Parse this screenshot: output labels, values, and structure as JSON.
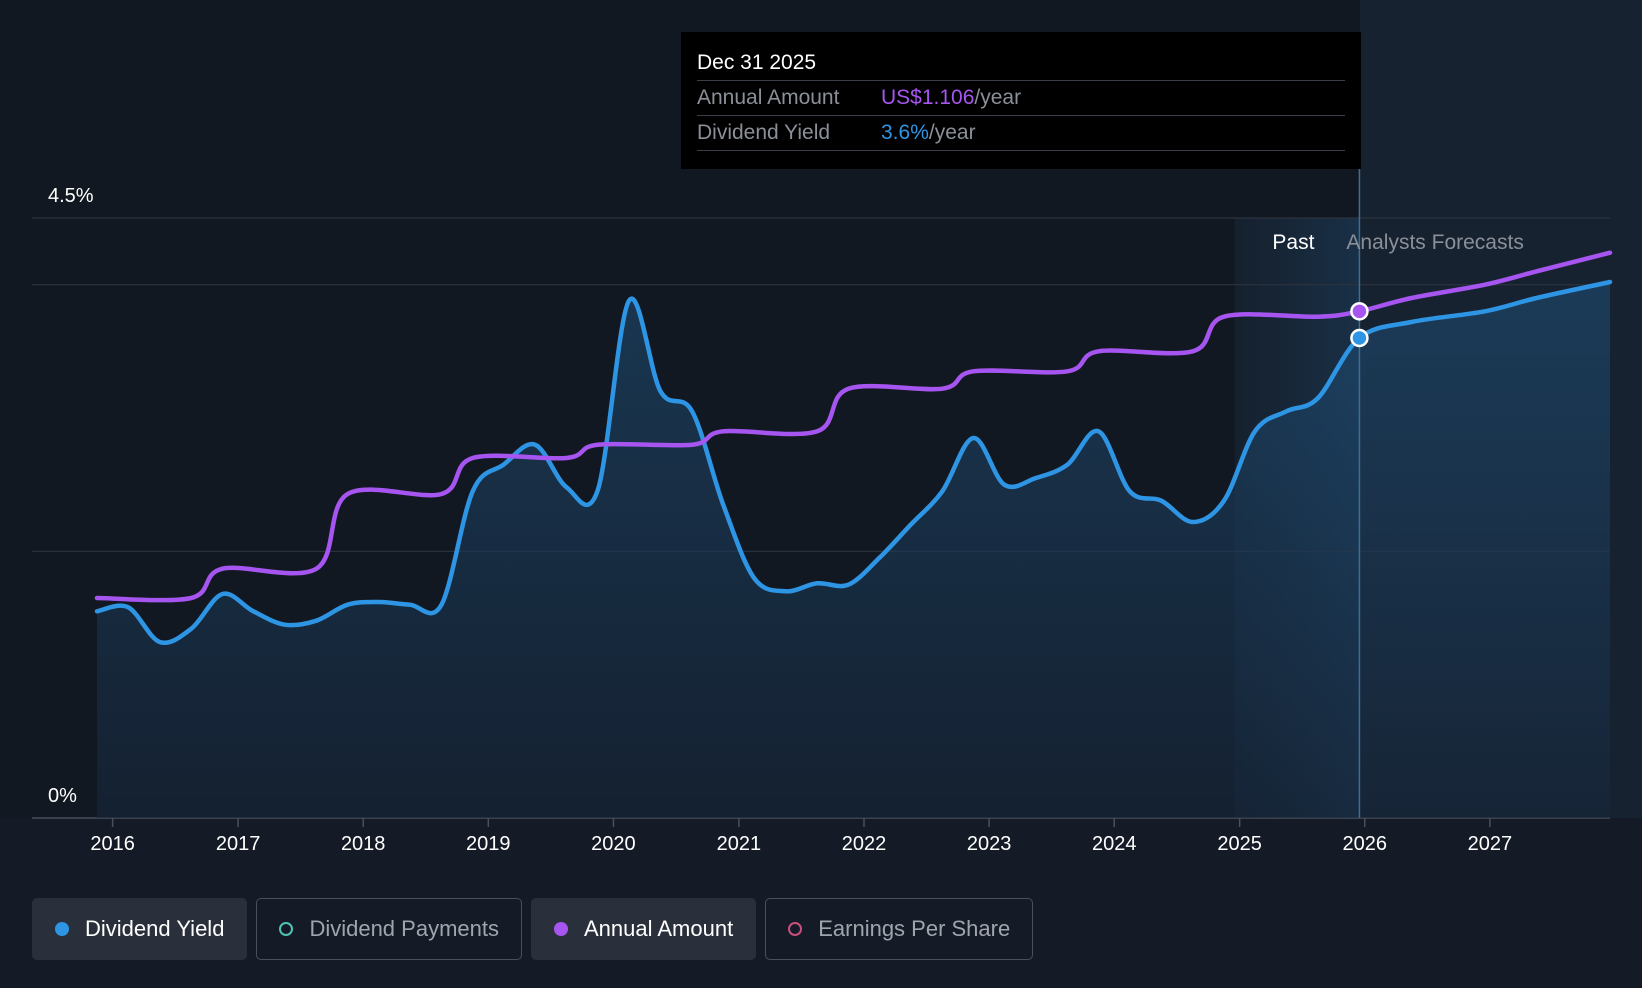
{
  "tooltip": {
    "date": "Dec 31 2025",
    "rows": [
      {
        "label": "Annual Amount",
        "value": "US$1.106",
        "suffix": "/year"
      },
      {
        "label": "Dividend Yield",
        "value": "3.6%",
        "suffix": "/year"
      }
    ]
  },
  "legend": [
    {
      "label": "Dividend Yield",
      "active": true,
      "color": "#2e95e5",
      "icon": "filled-dot-icon"
    },
    {
      "label": "Dividend Payments",
      "active": false,
      "color": "#4fc3b3",
      "icon": "hollow-dot-icon"
    },
    {
      "label": "Annual Amount",
      "active": true,
      "color": "#a655f0",
      "icon": "filled-dot-icon"
    },
    {
      "label": "Earnings Per Share",
      "active": false,
      "color": "#c94f7c",
      "icon": "hollow-dot-icon"
    }
  ],
  "chart_data": {
    "type": "line",
    "x_axis": {
      "type": "date",
      "range": [
        "2015-12-01",
        "2028-01-01"
      ],
      "ticks": [
        "2016",
        "2017",
        "2018",
        "2019",
        "2020",
        "2021",
        "2022",
        "2023",
        "2024",
        "2025",
        "2026",
        "2027"
      ]
    },
    "y_axis": {
      "range": [
        0,
        4.5
      ],
      "unit": "%",
      "tick_labels": [
        "4.5%",
        "0%"
      ],
      "gridlines": [
        0,
        2.0,
        4.0,
        4.5
      ]
    },
    "regions": {
      "past_label": "Past",
      "forecast_label": "Analysts Forecasts",
      "past_band": [
        "2025-01-01",
        "2025-12-31"
      ],
      "divider": "2025-12-31"
    },
    "series": [
      {
        "name": "Dividend Yield",
        "color": "#2e95e5",
        "fill": true,
        "points": [
          [
            "2015-12-01",
            1.55
          ],
          [
            "2016-03-01",
            1.58
          ],
          [
            "2016-06-01",
            1.32
          ],
          [
            "2016-09-01",
            1.42
          ],
          [
            "2016-12-01",
            1.68
          ],
          [
            "2017-03-01",
            1.55
          ],
          [
            "2017-06-01",
            1.45
          ],
          [
            "2017-09-01",
            1.48
          ],
          [
            "2017-12-01",
            1.6
          ],
          [
            "2018-03-01",
            1.62
          ],
          [
            "2018-06-01",
            1.6
          ],
          [
            "2018-09-01",
            1.6
          ],
          [
            "2018-12-01",
            2.45
          ],
          [
            "2019-03-01",
            2.65
          ],
          [
            "2019-06-01",
            2.8
          ],
          [
            "2019-09-01",
            2.48
          ],
          [
            "2019-12-01",
            2.46
          ],
          [
            "2020-03-01",
            3.88
          ],
          [
            "2020-06-01",
            3.2
          ],
          [
            "2020-09-01",
            3.05
          ],
          [
            "2020-12-01",
            2.35
          ],
          [
            "2021-03-01",
            1.8
          ],
          [
            "2021-06-01",
            1.7
          ],
          [
            "2021-09-01",
            1.76
          ],
          [
            "2021-12-01",
            1.75
          ],
          [
            "2022-03-01",
            1.95
          ],
          [
            "2022-06-01",
            2.2
          ],
          [
            "2022-09-01",
            2.45
          ],
          [
            "2022-12-01",
            2.85
          ],
          [
            "2023-03-01",
            2.5
          ],
          [
            "2023-06-01",
            2.55
          ],
          [
            "2023-09-01",
            2.65
          ],
          [
            "2023-12-01",
            2.9
          ],
          [
            "2024-03-01",
            2.45
          ],
          [
            "2024-06-01",
            2.38
          ],
          [
            "2024-09-01",
            2.22
          ],
          [
            "2024-12-01",
            2.38
          ],
          [
            "2025-03-01",
            2.9
          ],
          [
            "2025-06-01",
            3.05
          ],
          [
            "2025-09-01",
            3.15
          ],
          [
            "2025-12-31",
            3.6
          ],
          [
            "2026-06-01",
            3.72
          ],
          [
            "2027-01-01",
            3.8
          ],
          [
            "2027-06-01",
            3.9
          ],
          [
            "2028-01-01",
            4.02
          ]
        ]
      },
      {
        "name": "Annual Amount",
        "color": "#a655f0",
        "fill": false,
        "points": [
          [
            "2015-12-01",
            1.65
          ],
          [
            "2016-09-01",
            1.65
          ],
          [
            "2016-12-01",
            1.87
          ],
          [
            "2017-09-01",
            1.87
          ],
          [
            "2017-12-01",
            2.43
          ],
          [
            "2018-09-01",
            2.43
          ],
          [
            "2018-12-01",
            2.7
          ],
          [
            "2019-09-01",
            2.7
          ],
          [
            "2019-12-01",
            2.8
          ],
          [
            "2020-09-01",
            2.8
          ],
          [
            "2020-12-01",
            2.9
          ],
          [
            "2021-09-01",
            2.9
          ],
          [
            "2021-12-01",
            3.22
          ],
          [
            "2022-09-01",
            3.22
          ],
          [
            "2022-12-01",
            3.35
          ],
          [
            "2023-09-01",
            3.35
          ],
          [
            "2023-12-01",
            3.5
          ],
          [
            "2024-09-01",
            3.5
          ],
          [
            "2024-12-01",
            3.76
          ],
          [
            "2025-09-01",
            3.76
          ],
          [
            "2025-12-31",
            3.8
          ],
          [
            "2026-06-01",
            3.9
          ],
          [
            "2027-01-01",
            4.0
          ],
          [
            "2027-06-01",
            4.1
          ],
          [
            "2028-01-01",
            4.24
          ]
        ]
      }
    ]
  }
}
